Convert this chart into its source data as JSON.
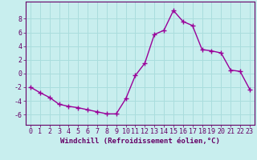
{
  "x": [
    0,
    1,
    2,
    3,
    4,
    5,
    6,
    7,
    8,
    9,
    10,
    11,
    12,
    13,
    14,
    15,
    16,
    17,
    18,
    19,
    20,
    21,
    22,
    23
  ],
  "y": [
    -2.0,
    -2.8,
    -3.5,
    -4.5,
    -4.8,
    -5.0,
    -5.3,
    -5.6,
    -5.9,
    -5.9,
    -3.7,
    -0.3,
    1.5,
    5.7,
    6.3,
    9.2,
    7.6,
    7.0,
    3.5,
    3.3,
    3.0,
    0.5,
    0.3,
    -2.3
  ],
  "line_color": "#990099",
  "marker": "+",
  "marker_size": 4,
  "bg_color": "#c8eeee",
  "grid_color": "#aadddd",
  "xlabel": "Windchill (Refroidissement éolien,°C)",
  "ylabel": "",
  "xlim": [
    -0.5,
    23.5
  ],
  "ylim": [
    -7.5,
    10.5
  ],
  "yticks": [
    -6,
    -4,
    -2,
    0,
    2,
    4,
    6,
    8
  ],
  "xticks": [
    0,
    1,
    2,
    3,
    4,
    5,
    6,
    7,
    8,
    9,
    10,
    11,
    12,
    13,
    14,
    15,
    16,
    17,
    18,
    19,
    20,
    21,
    22,
    23
  ],
  "tick_color": "#660066",
  "axis_color": "#660066",
  "xlabel_fontsize": 6.5,
  "tick_fontsize": 6.0,
  "line_width": 1.0
}
